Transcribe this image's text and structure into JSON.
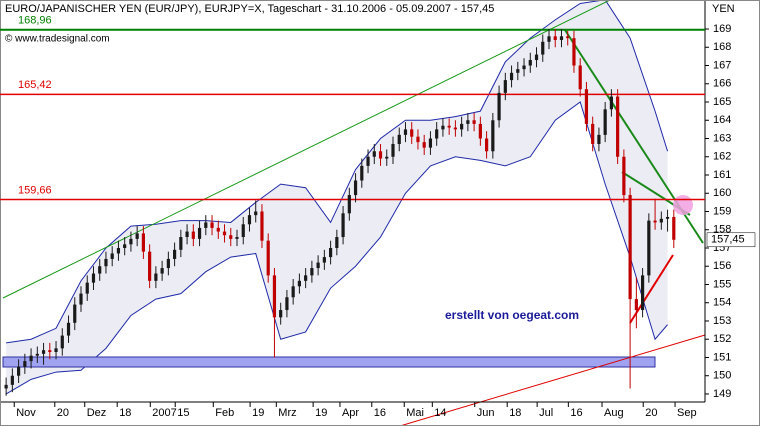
{
  "chart_data": {
    "type": "candlestick",
    "title": "EURO/JAPANISCHER YEN (EUR/JPY), EURJPY=X, Tageschart - 31.10.2006 - 05.09.2007 - 157,45",
    "subtitle": "© www.tradesignal.com",
    "y_label": "YEN",
    "annotation": "erstellt von oegeat.com",
    "last_label": "157,45",
    "up_color": "#1a1a1a",
    "down_color": "#c00000",
    "band_color": "#1f2aa8",
    "xlim": [
      -0.5,
      112
    ],
    "ylim": [
      148.56,
      170.59
    ],
    "xticks": [
      {
        "value": 1.3,
        "label": "Nov"
      },
      {
        "value": 7.8,
        "label": "20"
      },
      {
        "value": 12.6,
        "label": "Dez"
      },
      {
        "value": 17.8,
        "label": "18"
      },
      {
        "value": 23.1,
        "label": "2007"
      },
      {
        "value": 27.1,
        "label": "15"
      },
      {
        "value": 33.2,
        "label": "Feb"
      },
      {
        "value": 39.1,
        "label": "19"
      },
      {
        "value": 43.3,
        "label": "Mrz"
      },
      {
        "value": 49.2,
        "label": "19"
      },
      {
        "value": 53.5,
        "label": "Apr"
      },
      {
        "value": 58.6,
        "label": "16"
      },
      {
        "value": 63.8,
        "label": "Mai"
      },
      {
        "value": 68.3,
        "label": "14"
      },
      {
        "value": 75.1,
        "label": "Jun"
      },
      {
        "value": 80.3,
        "label": "18"
      },
      {
        "value": 85.1,
        "label": "Jul"
      },
      {
        "value": 90.1,
        "label": "16"
      },
      {
        "value": 95.5,
        "label": "Aug"
      },
      {
        "value": 102.1,
        "label": "20"
      },
      {
        "value": 107.2,
        "label": "Sep"
      }
    ],
    "yticks": [
      149,
      150,
      151,
      152,
      153,
      154,
      155,
      156,
      157,
      158,
      159,
      160,
      161,
      162,
      163,
      164,
      165,
      166,
      167,
      168,
      169
    ],
    "levels": [
      {
        "value": 168.96,
        "label": "168,96",
        "color": "#008000"
      },
      {
        "value": 165.42,
        "label": "165,42",
        "color": "#e00000"
      },
      {
        "value": 159.66,
        "label": "159,66",
        "color": "#e00000"
      }
    ],
    "open": [
      149.3,
      149.5,
      150.0,
      150.5,
      150.8,
      151.1,
      151.2,
      151.4,
      151.3,
      151.5,
      152.2,
      152.9,
      153.9,
      154.5,
      155.1,
      155.6,
      156.0,
      156.4,
      156.7,
      157.0,
      157.2,
      157.5,
      157.8,
      156.8,
      155.2,
      155.6,
      155.9,
      156.4,
      156.9,
      157.6,
      157.9,
      157.5,
      158.1,
      158.4,
      158.1,
      157.9,
      157.7,
      157.5,
      157.6,
      158.3,
      158.8,
      159.0,
      157.4,
      155.5,
      153.2,
      153.6,
      154.3,
      154.9,
      155.2,
      155.5,
      155.9,
      156.2,
      156.5,
      157.0,
      157.6,
      158.9,
      159.9,
      160.7,
      161.5,
      162.0,
      162.3,
      161.9,
      162.0,
      162.7,
      163.2,
      163.5,
      163.1,
      162.8,
      162.5,
      163.0,
      163.5,
      163.7,
      163.6,
      163.5,
      163.8,
      164.0,
      163.8,
      163.0,
      162.3,
      164.0,
      165.5,
      166.2,
      166.6,
      166.8,
      167.0,
      167.3,
      167.6,
      168.3,
      168.6,
      168.4,
      168.6,
      168.5,
      167.0,
      165.7,
      163.8,
      162.7,
      163.2,
      164.6,
      165.3,
      162.0,
      159.9,
      154.2,
      153.6,
      155.5,
      158.5,
      158.4,
      158.6,
      158.7
    ],
    "high": [
      149.9,
      150.4,
      150.9,
      151.2,
      151.5,
      151.6,
      151.8,
      151.8,
      151.9,
      152.6,
      153.3,
      154.3,
      154.9,
      155.5,
      156.0,
      156.4,
      156.8,
      157.1,
      157.4,
      157.6,
      157.9,
      158.2,
      158.2,
      157.2,
      156.0,
      156.3,
      156.8,
      157.3,
      158.0,
      158.3,
      158.3,
      158.5,
      158.8,
      158.8,
      158.5,
      158.3,
      158.1,
      158.0,
      158.7,
      159.2,
      159.6,
      159.4,
      157.8,
      155.9,
      154.0,
      154.7,
      155.3,
      155.6,
      155.9,
      156.3,
      156.6,
      156.9,
      157.4,
      158.0,
      159.3,
      160.3,
      161.1,
      161.9,
      162.4,
      162.7,
      162.7,
      162.4,
      163.1,
      163.6,
      163.9,
      163.9,
      163.5,
      163.2,
      163.4,
      163.9,
      164.1,
      164.1,
      164.0,
      164.2,
      164.4,
      164.4,
      164.2,
      163.4,
      164.4,
      165.9,
      166.6,
      167.0,
      167.2,
      167.4,
      167.7,
      168.0,
      168.7,
      169.0,
      169.0,
      169.0,
      168.9,
      168.9,
      167.4,
      166.1,
      164.2,
      163.6,
      165.0,
      165.7,
      165.7,
      162.4,
      160.3,
      155.4,
      155.9,
      158.9,
      159.7,
      159.0,
      159.1,
      159.1
    ],
    "low": [
      148.9,
      149.1,
      149.6,
      150.1,
      150.4,
      150.7,
      150.6,
      150.9,
      150.9,
      151.1,
      151.8,
      152.5,
      153.5,
      154.1,
      154.7,
      155.2,
      155.6,
      156.0,
      156.3,
      156.6,
      156.8,
      157.1,
      156.4,
      154.8,
      154.8,
      155.2,
      155.5,
      156.0,
      156.5,
      157.2,
      157.1,
      157.1,
      157.7,
      157.7,
      157.5,
      157.3,
      157.1,
      157.1,
      157.2,
      157.9,
      158.4,
      157.0,
      155.1,
      151.0,
      152.8,
      153.2,
      153.9,
      154.5,
      154.8,
      155.1,
      155.5,
      155.8,
      156.1,
      156.6,
      157.2,
      158.5,
      159.5,
      160.3,
      161.1,
      161.6,
      161.5,
      161.5,
      161.6,
      162.3,
      162.8,
      162.7,
      162.4,
      162.1,
      162.1,
      162.6,
      163.1,
      163.2,
      163.1,
      163.1,
      163.4,
      163.4,
      162.6,
      161.9,
      161.9,
      163.6,
      165.1,
      165.8,
      166.2,
      166.4,
      166.6,
      166.9,
      167.2,
      167.9,
      168.0,
      168.0,
      168.1,
      166.6,
      165.3,
      163.4,
      162.3,
      162.3,
      162.8,
      164.2,
      161.6,
      159.5,
      149.3,
      152.6,
      153.2,
      155.1,
      158.0,
      158.0,
      157.9,
      157.0
    ],
    "close": [
      149.5,
      150.0,
      150.5,
      150.8,
      151.1,
      151.2,
      151.4,
      151.3,
      151.5,
      152.2,
      152.9,
      153.9,
      154.5,
      155.1,
      155.6,
      156.0,
      156.4,
      156.7,
      157.0,
      157.2,
      157.5,
      157.8,
      156.8,
      155.2,
      155.6,
      155.9,
      156.4,
      156.9,
      157.6,
      157.9,
      157.5,
      158.1,
      158.4,
      158.1,
      157.9,
      157.7,
      157.5,
      157.6,
      158.3,
      158.8,
      159.0,
      157.4,
      155.5,
      153.2,
      153.6,
      154.3,
      154.9,
      155.2,
      155.5,
      155.9,
      156.2,
      156.5,
      157.0,
      157.6,
      158.9,
      159.9,
      160.7,
      161.5,
      162.0,
      162.3,
      161.9,
      162.0,
      162.7,
      163.2,
      163.5,
      163.1,
      162.8,
      162.5,
      163.0,
      163.5,
      163.7,
      163.6,
      163.5,
      163.8,
      164.0,
      163.8,
      163.0,
      162.3,
      164.0,
      165.5,
      166.2,
      166.6,
      166.8,
      167.0,
      167.3,
      167.6,
      168.3,
      168.6,
      168.4,
      168.6,
      168.5,
      167.0,
      165.7,
      163.8,
      162.7,
      163.2,
      164.6,
      165.3,
      162.0,
      159.9,
      154.2,
      153.6,
      155.5,
      158.5,
      158.4,
      158.6,
      158.7,
      157.45
    ],
    "bands": {
      "x": [
        0,
        4,
        8,
        12,
        16,
        20,
        24,
        28,
        32,
        36,
        40,
        44,
        48,
        52,
        56,
        60,
        64,
        68,
        72,
        76,
        80,
        84,
        88,
        92,
        96,
        100,
        104,
        106
      ],
      "upper": [
        151.8,
        152.0,
        152.6,
        155.2,
        157.0,
        158.2,
        158.3,
        158.5,
        158.5,
        158.4,
        159.5,
        160.5,
        160.3,
        158.4,
        161.3,
        163.0,
        164.0,
        164.0,
        164.2,
        164.5,
        167.2,
        168.5,
        169.5,
        170.4,
        170.6,
        168.5,
        164.5,
        162.3
      ],
      "lower": [
        149.0,
        149.8,
        150.2,
        150.3,
        151.5,
        153.3,
        154.2,
        154.5,
        155.7,
        156.5,
        156.7,
        152.0,
        152.4,
        154.8,
        156.0,
        157.6,
        160.0,
        161.5,
        162.0,
        161.8,
        161.5,
        162.0,
        164.0,
        165.0,
        160.5,
        156.5,
        152.0,
        152.8
      ]
    }
  }
}
